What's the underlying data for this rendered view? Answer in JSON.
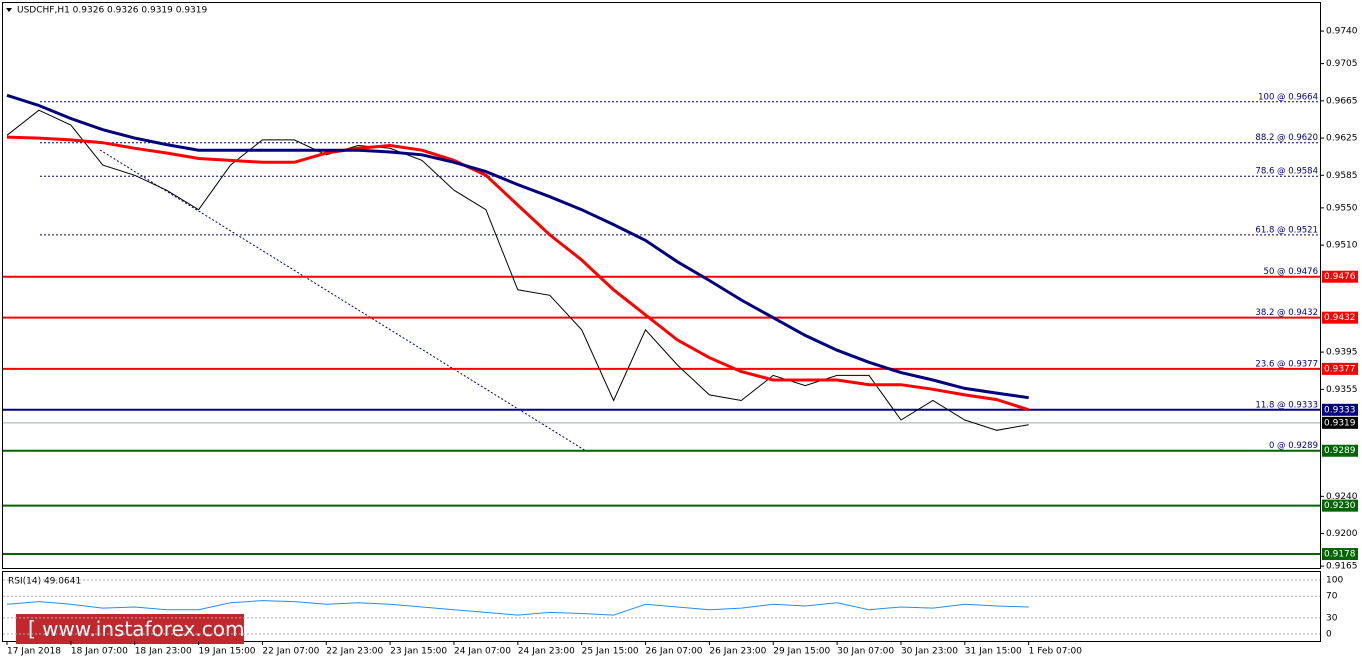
{
  "watermark": "www.instaforex.com",
  "chart_data": [
    {
      "type": "line",
      "title": "USDCHF,H1  0.9326 0.9326 0.9319 0.9319",
      "x": [
        0,
        8,
        16,
        24,
        32,
        40,
        48,
        56,
        64,
        72,
        80,
        88,
        96,
        104,
        112,
        120,
        128,
        136,
        144,
        152,
        160,
        168,
        176,
        184,
        192,
        200,
        208,
        216,
        224,
        232,
        240,
        248,
        256
      ],
      "xlim": [
        -1,
        329
      ],
      "xticks": [
        {
          "value": 0,
          "label": "17 Jan 2018"
        },
        {
          "value": 16,
          "label": "18 Jan 07:00"
        },
        {
          "value": 32,
          "label": "18 Jan 23:00"
        },
        {
          "value": 48,
          "label": "19 Jan 15:00"
        },
        {
          "value": 64,
          "label": "22 Jan 07:00"
        },
        {
          "value": 80,
          "label": "22 Jan 23:00"
        },
        {
          "value": 96,
          "label": "23 Jan 15:00"
        },
        {
          "value": 112,
          "label": "24 Jan 07:00"
        },
        {
          "value": 128,
          "label": "24 Jan 23:00"
        },
        {
          "value": 144,
          "label": "25 Jan 15:00"
        },
        {
          "value": 160,
          "label": "26 Jan 07:00"
        },
        {
          "value": 176,
          "label": "26 Jan 23:00"
        },
        {
          "value": 192,
          "label": "29 Jan 15:00"
        },
        {
          "value": 208,
          "label": "30 Jan 07:00"
        },
        {
          "value": 224,
          "label": "30 Jan 23:00"
        },
        {
          "value": 240,
          "label": "31 Jan 15:00"
        },
        {
          "value": 256,
          "label": "1 Feb 07:00"
        }
      ],
      "ylim": [
        0.9163,
        0.9768
      ],
      "yticks": [
        {
          "value": 0.974,
          "label": "0.9740"
        },
        {
          "value": 0.9705,
          "label": "0.9705"
        },
        {
          "value": 0.9665,
          "label": "0.9665"
        },
        {
          "value": 0.9625,
          "label": "0.9625"
        },
        {
          "value": 0.9585,
          "label": "0.9585"
        },
        {
          "value": 0.955,
          "label": "0.9550"
        },
        {
          "value": 0.951,
          "label": "0.9510"
        },
        {
          "value": 0.9395,
          "label": "0.9395"
        },
        {
          "value": 0.9355,
          "label": "0.9355"
        },
        {
          "value": 0.924,
          "label": "0.9240"
        },
        {
          "value": 0.92,
          "label": "0.9200"
        },
        {
          "value": 0.9165,
          "label": "0.9165"
        }
      ],
      "series": [
        {
          "color": "#000000",
          "values": [
            0.9628,
            0.9655,
            0.9639,
            0.9596,
            0.9585,
            0.9569,
            0.9548,
            0.9596,
            0.9623,
            0.9623,
            0.9607,
            0.9617,
            0.9614,
            0.9601,
            0.9569,
            0.9548,
            0.9462,
            0.9456,
            0.9419,
            0.9343,
            0.9419,
            0.9381,
            0.9349,
            0.9343,
            0.937,
            0.9359,
            0.937,
            0.937,
            0.9322,
            0.9343,
            0.9322,
            0.9311,
            0.9317
          ]
        },
        {
          "color": "#ff0000",
          "values": [
            0.9626,
            0.9625,
            0.9623,
            0.962,
            0.9614,
            0.9609,
            0.9603,
            0.9601,
            0.9599,
            0.9599,
            0.9609,
            0.9614,
            0.9617,
            0.9612,
            0.9601,
            0.9585,
            0.9553,
            0.9521,
            0.9494,
            0.9462,
            0.9435,
            0.9408,
            0.9389,
            0.9374,
            0.9365,
            0.9365,
            0.9365,
            0.936,
            0.936,
            0.9355,
            0.9349,
            0.9344,
            0.9333
          ]
        },
        {
          "color": "#00007f",
          "values": [
            0.9671,
            0.966,
            0.9646,
            0.9634,
            0.9625,
            0.9618,
            0.9612,
            0.9612,
            0.9612,
            0.9612,
            0.9612,
            0.9612,
            0.961,
            0.9607,
            0.9599,
            0.9589,
            0.9575,
            0.9562,
            0.9548,
            0.9532,
            0.9515,
            0.9492,
            0.9472,
            0.9451,
            0.9432,
            0.9413,
            0.9397,
            0.9384,
            0.9373,
            0.9365,
            0.9356,
            0.9351,
            0.9346
          ]
        }
      ],
      "levels": [
        {
          "value": 0.9476,
          "label": "0.9476",
          "color": "#ff0000"
        },
        {
          "value": 0.9432,
          "label": "0.9432",
          "color": "#ff0000"
        },
        {
          "value": 0.9377,
          "label": "0.9377",
          "color": "#ff0000"
        },
        {
          "value": 0.9333,
          "label": "0.9333",
          "color": "#000080"
        },
        {
          "value": 0.9289,
          "label": "0.9289",
          "color": "#006400"
        },
        {
          "value": 0.923,
          "label": "0.9230",
          "color": "#006400"
        },
        {
          "value": 0.9178,
          "label": "0.9178",
          "color": "#006400"
        }
      ],
      "current": {
        "value": 0.9319,
        "label": "0.9319"
      },
      "fibonacci": [
        {
          "value": 0.9664,
          "label": "100 @ 0.9664"
        },
        {
          "value": 0.962,
          "label": "88.2 @ 0.9620"
        },
        {
          "value": 0.9584,
          "label": "78.6 @ 0.9584"
        },
        {
          "value": 0.9521,
          "label": "61.8 @ 0.9521"
        },
        {
          "value": 0.9476,
          "label": "50 @ 0.9476"
        },
        {
          "value": 0.9432,
          "label": "38.2 @ 0.9432"
        },
        {
          "value": 0.9377,
          "label": "23.6 @ 0.9377"
        },
        {
          "value": 0.9333,
          "label": "11.8 @ 0.9333"
        },
        {
          "value": 0.9289,
          "label": "0 @ 0.9289"
        }
      ]
    },
    {
      "type": "line",
      "title": "RSI(14) 49.0641",
      "ylim": [
        -11,
        113
      ],
      "yticks": [
        0,
        30,
        70,
        100
      ],
      "series": [
        {
          "color": "#1e90ff",
          "values": [
            55,
            60,
            55,
            48,
            50,
            45,
            45,
            58,
            62,
            60,
            55,
            58,
            55,
            50,
            45,
            40,
            35,
            40,
            38,
            35,
            55,
            50,
            45,
            48,
            55,
            52,
            58,
            45,
            50,
            48,
            55,
            52,
            50
          ]
        }
      ]
    }
  ]
}
